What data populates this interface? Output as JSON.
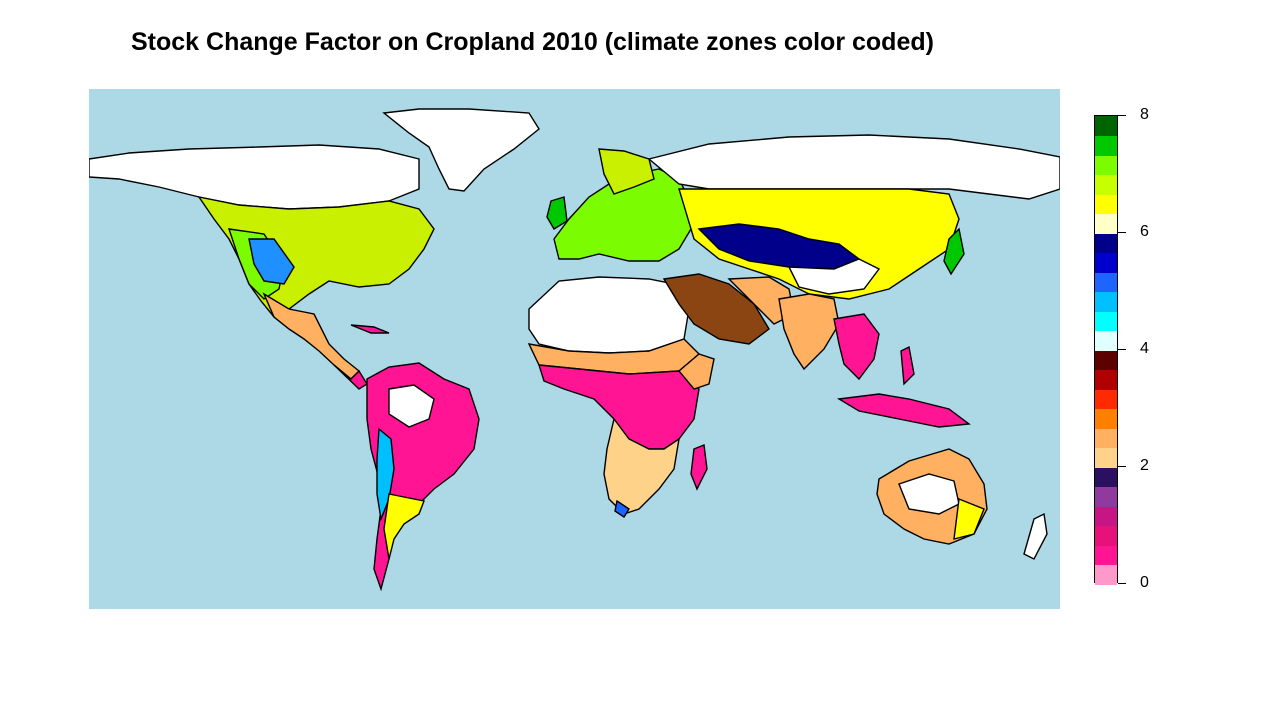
{
  "title": "Stock Change Factor on Cropland 2010 (climate zones color coded)",
  "legend": {
    "min": 0,
    "max": 8,
    "ticks": [
      "0",
      "2",
      "4",
      "6",
      "8"
    ],
    "bands": [
      {
        "from": 0,
        "to": 2,
        "colors": [
          "#ff99cc",
          "#ff1493",
          "#e6127a",
          "#c71585",
          "#8e3a9e",
          "#2a1060"
        ]
      },
      {
        "from": 2,
        "to": 4,
        "colors": [
          "#ffd28a",
          "#ffb060",
          "#ff7f00",
          "#ff2a00",
          "#b00000",
          "#5c0000"
        ]
      },
      {
        "from": 4,
        "to": 6,
        "colors": [
          "#e0ffff",
          "#00ffff",
          "#00bfff",
          "#1e64ff",
          "#0000cd",
          "#00008b"
        ]
      },
      {
        "from": 6,
        "to": 8,
        "colors": [
          "#ffffc8",
          "#ffff00",
          "#c8ff00",
          "#7cfc00",
          "#00c800",
          "#006400"
        ]
      }
    ]
  },
  "map": {
    "ocean_color": "#add8e6",
    "border_color": "#000000",
    "no_data_color": "#ffffff"
  }
}
